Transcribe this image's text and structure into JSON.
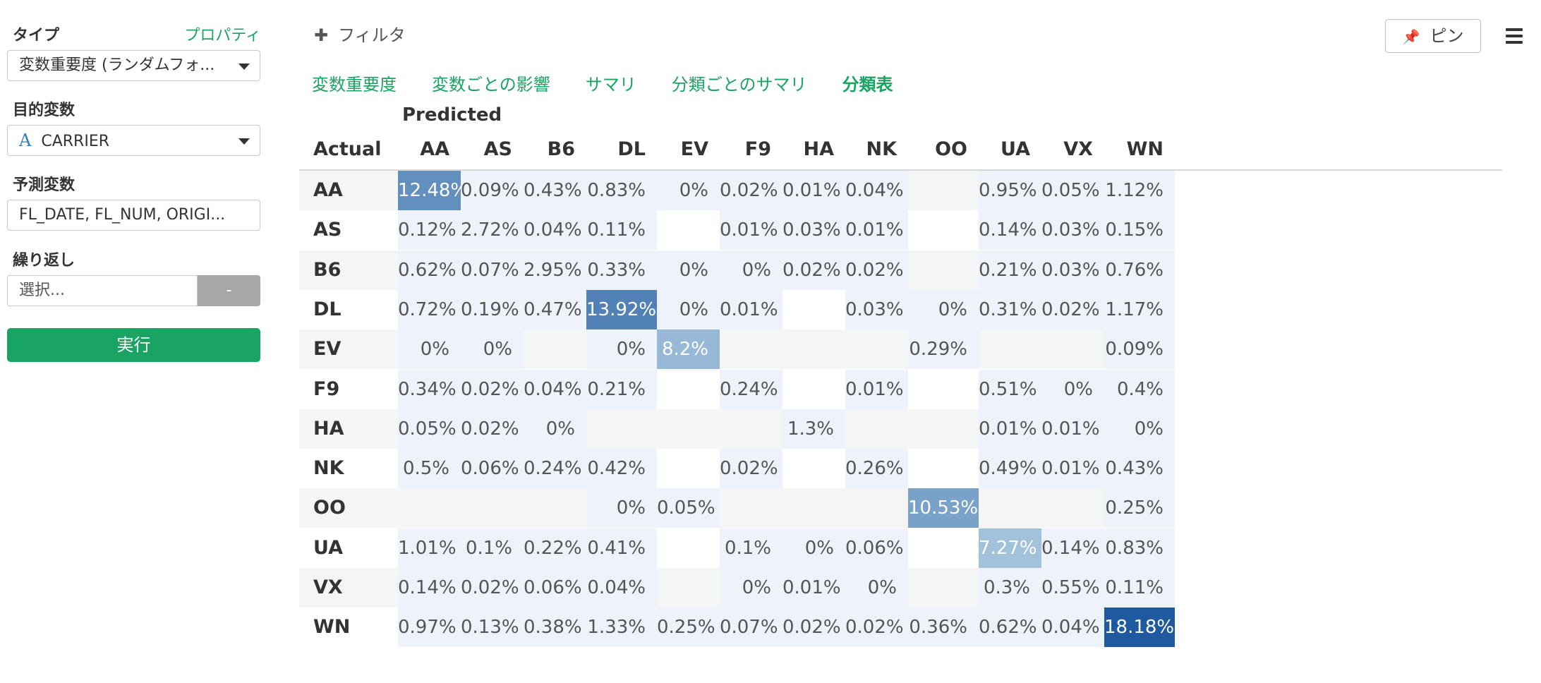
{
  "left_panel": {
    "type_label": "タイプ",
    "property_link": "プロパティ",
    "type_value": "変数重要度 (ランダムフォ...",
    "target_label": "目的変数",
    "target_type_glyph": "A",
    "target_value": "CARRIER",
    "predictors_label": "予測変数",
    "predictors_value": "FL_DATE, FL_NUM, ORIGI...",
    "repeat_label": "繰り返し",
    "repeat_placeholder": "選択...",
    "repeat_button": "-",
    "run_button": "実行"
  },
  "topbar": {
    "filter_label": "フィルタ",
    "pin_label": "ピン"
  },
  "tabs": [
    {
      "label": "変数重要度",
      "active": false
    },
    {
      "label": "変数ごとの影響",
      "active": false
    },
    {
      "label": "サマリ",
      "active": false
    },
    {
      "label": "分類ごとのサマリ",
      "active": false
    },
    {
      "label": "分類表",
      "active": true
    }
  ],
  "colors": {
    "accent": "#19a463",
    "cell_dark": "#1f5aa0",
    "cell_light": "#eef2fb",
    "cell_gray": "#f5f5f5"
  },
  "chart_data": {
    "type": "heatmap",
    "title": "",
    "xlabel": "Predicted",
    "ylabel": "Actual",
    "columns": [
      "AA",
      "AS",
      "B6",
      "DL",
      "EV",
      "F9",
      "HA",
      "NK",
      "OO",
      "UA",
      "VX",
      "WN"
    ],
    "rows": [
      "AA",
      "AS",
      "B6",
      "DL",
      "EV",
      "F9",
      "HA",
      "NK",
      "OO",
      "UA",
      "VX",
      "WN"
    ],
    "cells": [
      [
        "12.48%",
        "0.09%",
        "0.43%",
        "0.83%",
        "0%",
        "0.02%",
        "0.01%",
        "0.04%",
        "",
        "0.95%",
        "0.05%",
        "1.12%"
      ],
      [
        "0.12%",
        "2.72%",
        "0.04%",
        "0.11%",
        "",
        "0.01%",
        "0.03%",
        "0.01%",
        "",
        "0.14%",
        "0.03%",
        "0.15%"
      ],
      [
        "0.62%",
        "0.07%",
        "2.95%",
        "0.33%",
        "0%",
        "0%",
        "0.02%",
        "0.02%",
        "",
        "0.21%",
        "0.03%",
        "0.76%"
      ],
      [
        "0.72%",
        "0.19%",
        "0.47%",
        "13.92%",
        "0%",
        "0.01%",
        "",
        "0.03%",
        "0%",
        "0.31%",
        "0.02%",
        "1.17%"
      ],
      [
        "0%",
        "0%",
        "",
        "0%",
        "8.2%",
        "",
        "",
        "",
        "0.29%",
        "",
        "",
        "0.09%"
      ],
      [
        "0.34%",
        "0.02%",
        "0.04%",
        "0.21%",
        "",
        "0.24%",
        "",
        "0.01%",
        "",
        "0.51%",
        "0%",
        "0.4%"
      ],
      [
        "0.05%",
        "0.02%",
        "0%",
        "",
        "",
        "",
        "1.3%",
        "",
        "",
        "0.01%",
        "0.01%",
        "0%"
      ],
      [
        "0.5%",
        "0.06%",
        "0.24%",
        "0.42%",
        "",
        "0.02%",
        "",
        "0.26%",
        "",
        "0.49%",
        "0.01%",
        "0.43%"
      ],
      [
        "",
        "",
        "",
        "0%",
        "0.05%",
        "",
        "",
        "",
        "10.53%",
        "",
        "",
        "0.25%"
      ],
      [
        "1.01%",
        "0.1%",
        "0.22%",
        "0.41%",
        "",
        "0.1%",
        "0%",
        "0.06%",
        "",
        "7.27%",
        "0.14%",
        "0.83%"
      ],
      [
        "0.14%",
        "0.02%",
        "0.06%",
        "0.04%",
        "",
        "0%",
        "0.01%",
        "0%",
        "",
        "0.3%",
        "0.55%",
        "0.11%"
      ],
      [
        "0.97%",
        "0.13%",
        "0.38%",
        "1.33%",
        "0.25%",
        "0.07%",
        "0.02%",
        "0.02%",
        "0.36%",
        "0.62%",
        "0.04%",
        "18.18%"
      ]
    ]
  }
}
